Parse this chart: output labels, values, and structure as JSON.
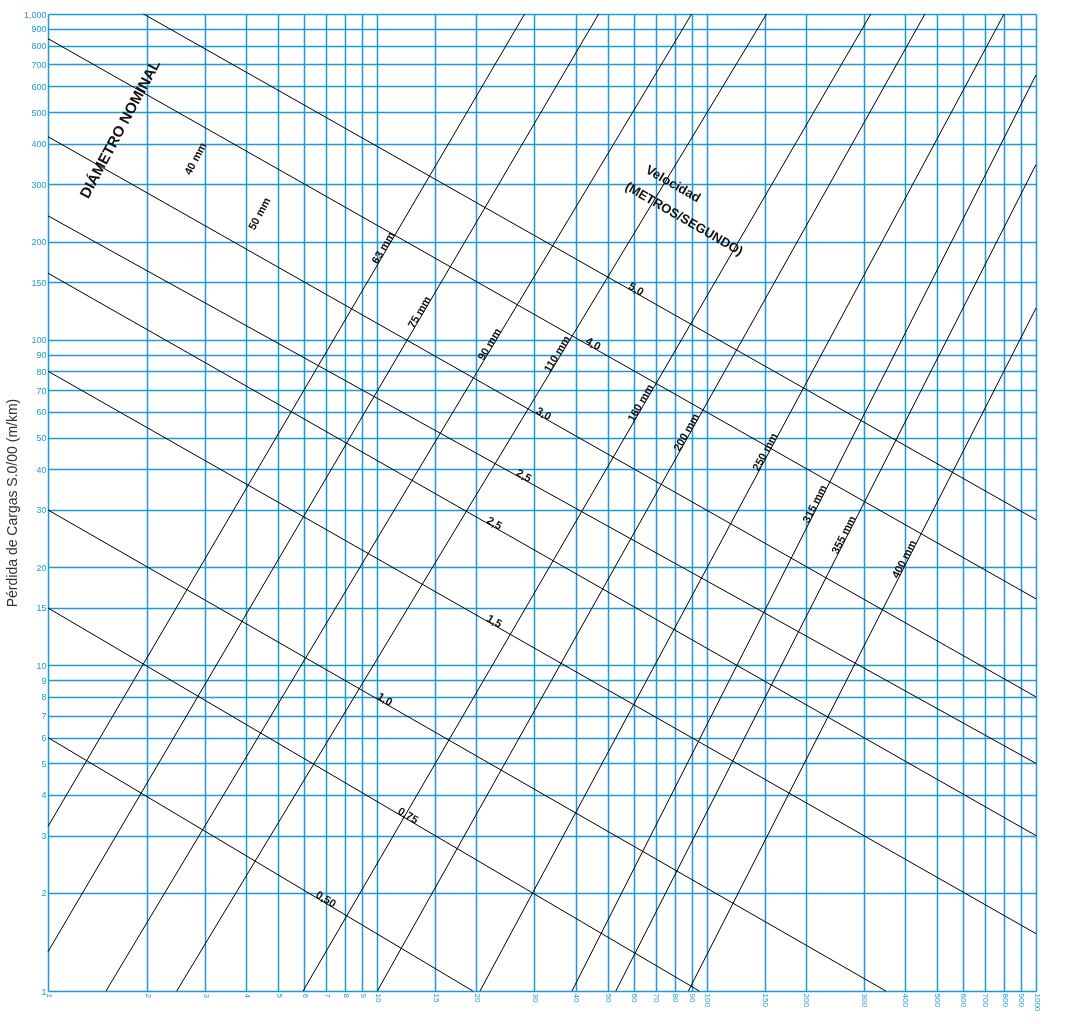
{
  "chart_data": {
    "type": "line",
    "ylabel": "Pérdida de Cargas S.0/00 (m/km)",
    "log": "xy",
    "grid": true,
    "legend": false,
    "marker": "none",
    "line_style": "solid",
    "xlim": [
      1,
      1000
    ],
    "ylim": [
      1,
      1000
    ],
    "xticks": [
      1,
      2,
      3,
      4,
      5,
      6,
      7,
      8,
      9,
      10,
      15,
      20,
      30,
      40,
      50,
      60,
      70,
      80,
      90,
      100,
      150,
      200,
      300,
      400,
      500,
      600,
      700,
      800,
      900,
      1000
    ],
    "yticks": [
      1,
      2,
      3,
      4,
      5,
      6,
      7,
      8,
      9,
      10,
      15,
      20,
      30,
      40,
      50,
      60,
      70,
      80,
      90,
      100,
      150,
      200,
      300,
      400,
      500,
      600,
      700,
      800,
      900,
      {
        "value": 1000,
        "label": "1,000"
      }
    ],
    "annotations": [
      "DIÁMETRO NOMINAL",
      "40 mm",
      "50 mm",
      "Velocidad",
      "(METROS/SEGUNDO)"
    ],
    "series": [
      {
        "name": "0,50",
        "color": "#000000",
        "x": [
          1,
          19.5
        ],
        "values": [
          6,
          1
        ]
      },
      {
        "name": "0,75",
        "color": "#000000",
        "x": [
          1,
          95
        ],
        "values": [
          15,
          1
        ]
      },
      {
        "name": "1,0",
        "color": "#000000",
        "x": [
          1,
          350
        ],
        "values": [
          30,
          1
        ]
      },
      {
        "name": "1,5",
        "color": "#000000",
        "x": [
          1,
          1000
        ],
        "values": [
          80,
          1.5
        ]
      },
      {
        "name": "2,5",
        "color": "#000000",
        "x": [
          1,
          1000
        ],
        "values": [
          160,
          3
        ]
      },
      {
        "name": "2,5",
        "color": "#000000",
        "x": [
          1,
          1000
        ],
        "values": [
          240,
          5
        ]
      },
      {
        "name": "3,0",
        "color": "#000000",
        "x": [
          1,
          1000
        ],
        "values": [
          420,
          8
        ]
      },
      {
        "name": "4,0",
        "color": "#000000",
        "x": [
          1,
          1000
        ],
        "values": [
          840,
          16
        ]
      },
      {
        "name": "5,0",
        "color": "#000000",
        "x": [
          1.95,
          1000
        ],
        "values": [
          1000,
          28
        ]
      },
      {
        "name": "63 mm",
        "color": "#000000",
        "x": [
          1,
          28
        ],
        "values": [
          3.2,
          1000
        ]
      },
      {
        "name": "75 mm",
        "color": "#000000",
        "x": [
          1,
          47
        ],
        "values": [
          1.32,
          1000
        ]
      },
      {
        "name": "90 mm",
        "color": "#000000",
        "x": [
          1.5,
          90
        ],
        "values": [
          1,
          1000
        ]
      },
      {
        "name": "110 mm",
        "color": "#000000",
        "x": [
          2.46,
          152
        ],
        "values": [
          1,
          1000
        ]
      },
      {
        "name": "160 mm",
        "color": "#000000",
        "x": [
          5.95,
          315
        ],
        "values": [
          1,
          1000
        ]
      },
      {
        "name": "200 mm",
        "color": "#000000",
        "x": [
          10,
          460
        ],
        "values": [
          1,
          1000
        ]
      },
      {
        "name": "250 mm",
        "color": "#000000",
        "x": [
          20.5,
          800
        ],
        "values": [
          1,
          1000
        ]
      },
      {
        "name": "315 mm",
        "color": "#000000",
        "x": [
          39,
          1000
        ],
        "values": [
          1,
          650
        ]
      },
      {
        "name": "355 mm",
        "color": "#000000",
        "x": [
          53,
          1000
        ],
        "values": [
          1,
          345
        ]
      },
      {
        "name": "400 mm",
        "color": "#000000",
        "x": [
          88,
          1000
        ],
        "values": [
          1,
          125
        ]
      }
    ]
  }
}
